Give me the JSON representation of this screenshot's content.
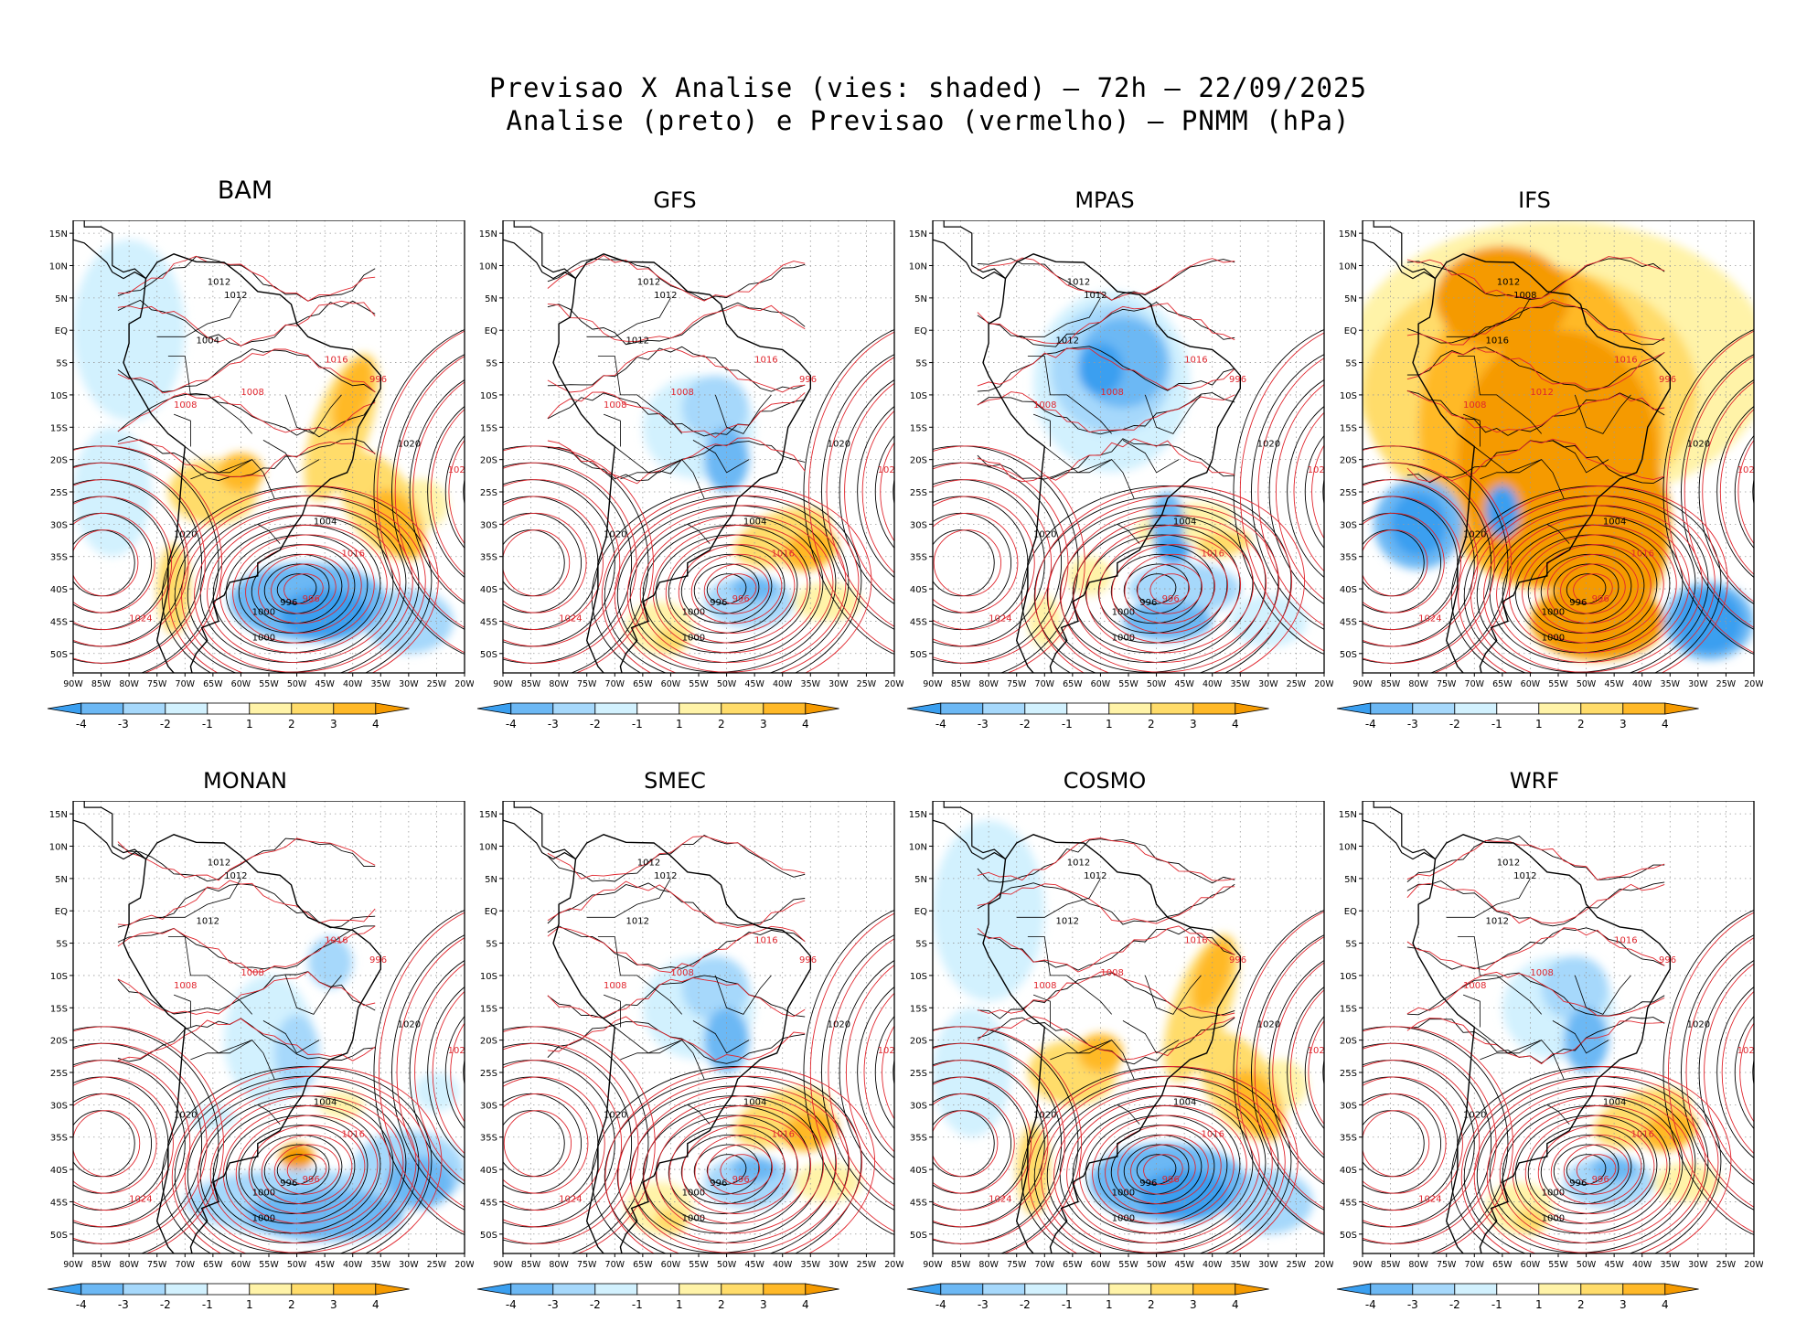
{
  "header": {
    "title_line1": "Previsao X Analise (vies: shaded) – 72h – 22/09/2025",
    "title_line2": "Analise (preto) e Previsao (vermelho) – PNMM (hPa)"
  },
  "colors": {
    "neg4": "#3a9ff0",
    "neg3": "#6cb8f4",
    "neg2": "#a6d8fb",
    "neg1": "#d2f1fe",
    "zero": "#ffffff",
    "pos1": "#fff3a8",
    "pos2": "#ffdc6a",
    "pos3": "#ffb928",
    "pos4": "#f59a00",
    "analysis": "#000000",
    "forecast": "#e0262e",
    "grid": "#999999"
  },
  "axes": {
    "lat_ticks": [
      "15N",
      "10N",
      "5N",
      "EQ",
      "5S",
      "10S",
      "15S",
      "20S",
      "25S",
      "30S",
      "35S",
      "40S",
      "45S",
      "50S"
    ],
    "lon_ticks": [
      "90W",
      "85W",
      "80W",
      "75W",
      "70W",
      "65W",
      "60W",
      "55W",
      "50W",
      "45W",
      "40W",
      "35W",
      "30W",
      "25W",
      "20W"
    ]
  },
  "colorbar": {
    "labels": [
      "-4",
      "-3",
      "-2",
      "-1",
      "1",
      "2",
      "3",
      "4"
    ]
  },
  "chart_data": [
    {
      "type": "heatmap",
      "title": "BAM",
      "bias_regime": "mixed-positive",
      "xlim": [
        -90,
        -20
      ],
      "ylim": [
        -53,
        17
      ],
      "contour_labels": [
        "1004",
        "1008",
        "1012",
        "1016",
        "1020",
        "1024",
        "1000",
        "996",
        "1004",
        "1008",
        "1012",
        "1016",
        "1020",
        "1024",
        "1000",
        "996"
      ],
      "low_center_label": "996"
    },
    {
      "type": "heatmap",
      "title": "GFS",
      "bias_regime": "mixed",
      "xlim": [
        -90,
        -20
      ],
      "ylim": [
        -53,
        17
      ],
      "contour_labels": [
        "1012",
        "1008",
        "1012",
        "1016",
        "1020",
        "1024",
        "1000",
        "996",
        "1004",
        "1008",
        "1012",
        "1016",
        "1020",
        "1024",
        "1000",
        "996"
      ],
      "low_center_label": "996"
    },
    {
      "type": "heatmap",
      "title": "MPAS",
      "bias_regime": "negative",
      "xlim": [
        -90,
        -20
      ],
      "ylim": [
        -53,
        17
      ],
      "contour_labels": [
        "1012",
        "1008",
        "1012",
        "1016",
        "1020",
        "1024",
        "1000",
        "996",
        "1004",
        "1008",
        "1012",
        "1016",
        "1020",
        "1024",
        "1000",
        "996"
      ],
      "low_center_label": "996"
    },
    {
      "type": "heatmap",
      "title": "IFS",
      "bias_regime": "positive",
      "xlim": [
        -90,
        -20
      ],
      "ylim": [
        -53,
        17
      ],
      "contour_labels": [
        "1016",
        "1012",
        "1008",
        "1016",
        "1020",
        "1024",
        "1000",
        "996",
        "1004",
        "1008",
        "1012",
        "1016",
        "1020",
        "1024",
        "1000",
        "996"
      ],
      "low_center_label": "996"
    },
    {
      "type": "heatmap",
      "title": "MONAN",
      "bias_regime": "negative-south",
      "xlim": [
        -90,
        -20
      ],
      "ylim": [
        -53,
        17
      ],
      "contour_labels": [
        "1012",
        "1008",
        "1012",
        "1016",
        "1020",
        "1024",
        "1000",
        "996",
        "1004",
        "1008",
        "1012",
        "1016",
        "1020",
        "1024",
        "1000",
        "996"
      ],
      "low_center_label": "996"
    },
    {
      "type": "heatmap",
      "title": "SMEC",
      "bias_regime": "mixed",
      "xlim": [
        -90,
        -20
      ],
      "ylim": [
        -53,
        17
      ],
      "contour_labels": [
        "1012",
        "1008",
        "1012",
        "1016",
        "1020",
        "1024",
        "1000",
        "996",
        "1004",
        "1008",
        "1012",
        "1016",
        "1020",
        "1024",
        "1000",
        "996"
      ],
      "low_center_label": "996"
    },
    {
      "type": "heatmap",
      "title": "COSMO",
      "bias_regime": "mixed-positive",
      "xlim": [
        -90,
        -20
      ],
      "ylim": [
        -53,
        17
      ],
      "contour_labels": [
        "1012",
        "1008",
        "1012",
        "1016",
        "1020",
        "1024",
        "1000",
        "996",
        "1004",
        "1008",
        "1012",
        "1016",
        "1020",
        "1024",
        "1000",
        "996"
      ],
      "low_center_label": "996"
    },
    {
      "type": "heatmap",
      "title": "WRF",
      "bias_regime": "mixed",
      "xlim": [
        -90,
        -20
      ],
      "ylim": [
        -53,
        17
      ],
      "contour_labels": [
        "1012",
        "1008",
        "1012",
        "1016",
        "1020",
        "1024",
        "1000",
        "996",
        "1004",
        "1008",
        "1012",
        "1016",
        "1020",
        "1024",
        "1000",
        "996"
      ],
      "low_center_label": "996"
    }
  ]
}
